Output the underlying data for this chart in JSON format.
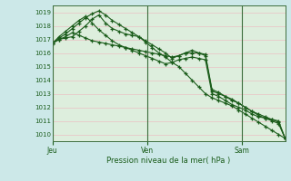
{
  "title": "Pression niveau de la mer( hPa )",
  "bg_color": "#cce8e8",
  "plot_bg_color": "#ddeedd",
  "grid_color": "#e8c8c8",
  "line_color": "#1a5c1a",
  "spine_color": "#3d6e3d",
  "ylim": [
    1009.5,
    1019.5
  ],
  "yticks": [
    1010,
    1011,
    1012,
    1013,
    1014,
    1015,
    1016,
    1017,
    1018,
    1019
  ],
  "day_labels": [
    "Jeu",
    "Ven",
    "Sam"
  ],
  "day_positions": [
    0,
    24,
    48
  ],
  "xlim_max": 60,
  "series": [
    [
      1016.7,
      1017.0,
      1017.1,
      1017.2,
      1017.6,
      1018.0,
      1018.5,
      1018.8,
      1018.2,
      1017.8,
      1017.6,
      1017.4,
      1017.3,
      1017.2,
      1016.8,
      1016.4,
      1016.0,
      1015.7,
      1015.3,
      1015.0,
      1014.5,
      1014.0,
      1013.5,
      1013.0,
      1012.7,
      1012.5,
      1012.3,
      1012.1,
      1011.8,
      1011.5,
      1011.2,
      1010.9,
      1010.6,
      1010.3,
      1010.0,
      1009.7
    ],
    [
      1016.7,
      1017.1,
      1017.4,
      1017.8,
      1018.2,
      1018.6,
      1018.9,
      1019.1,
      1018.8,
      1018.4,
      1018.1,
      1017.8,
      1017.5,
      1017.2,
      1016.9,
      1016.6,
      1016.3,
      1016.0,
      1015.6,
      1015.8,
      1016.0,
      1016.2,
      1016.0,
      1015.8,
      1013.2,
      1013.0,
      1012.8,
      1012.5,
      1012.3,
      1012.0,
      1011.7,
      1011.5,
      1011.3,
      1011.1,
      1010.9,
      1009.7
    ],
    [
      1016.7,
      1017.2,
      1017.6,
      1018.0,
      1018.4,
      1018.7,
      1018.2,
      1017.7,
      1017.3,
      1016.9,
      1016.6,
      1016.4,
      1016.2,
      1016.0,
      1015.8,
      1015.6,
      1015.4,
      1015.2,
      1015.3,
      1015.5,
      1015.6,
      1015.7,
      1015.6,
      1015.5,
      1013.0,
      1012.8,
      1012.5,
      1012.2,
      1012.0,
      1011.8,
      1011.5,
      1011.3,
      1011.2,
      1011.1,
      1011.0,
      1009.7
    ],
    [
      1016.7,
      1017.0,
      1017.2,
      1017.5,
      1017.3,
      1017.1,
      1016.9,
      1016.8,
      1016.7,
      1016.6,
      1016.5,
      1016.4,
      1016.3,
      1016.2,
      1016.1,
      1016.0,
      1015.9,
      1015.8,
      1015.7,
      1015.8,
      1016.0,
      1016.0,
      1016.0,
      1015.9,
      1013.3,
      1013.1,
      1012.8,
      1012.6,
      1012.3,
      1012.0,
      1011.7,
      1011.4,
      1011.2,
      1011.0,
      1010.8,
      1009.7
    ]
  ]
}
